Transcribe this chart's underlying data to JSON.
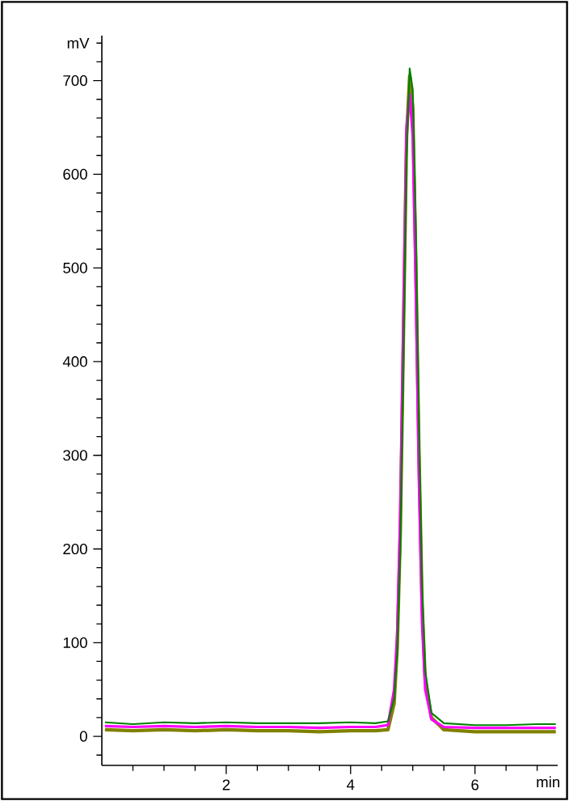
{
  "chart_data": {
    "type": "line",
    "xlabel": "min",
    "ylabel": "mV",
    "x": [
      0.05,
      0.5,
      1,
      1.5,
      2,
      2.5,
      3,
      3.5,
      4,
      4.4,
      4.6,
      4.7,
      4.75,
      4.8,
      4.85,
      4.9,
      4.95,
      5.0,
      5.05,
      5.1,
      5.15,
      5.2,
      5.3,
      5.5,
      6,
      6.5,
      7,
      7.3
    ],
    "series": [
      {
        "color": "#808000",
        "values": [
          7,
          6,
          7,
          6,
          7,
          6,
          6,
          5,
          6,
          6,
          7,
          35,
          95,
          220,
          430,
          640,
          705,
          670,
          500,
          300,
          140,
          60,
          20,
          7,
          5,
          5,
          5,
          5
        ]
      },
      {
        "color": "#ff00ff",
        "values": [
          11,
          10,
          11,
          10,
          11,
          10,
          10,
          9,
          10,
          10,
          12,
          50,
          110,
          240,
          450,
          650,
          685,
          640,
          470,
          270,
          120,
          50,
          18,
          10,
          9,
          9,
          9,
          9
        ]
      },
      {
        "color": "#008000",
        "values": [
          15,
          13,
          15,
          14,
          15,
          14,
          14,
          14,
          15,
          14,
          16,
          40,
          90,
          200,
          400,
          620,
          713,
          690,
          540,
          330,
          160,
          70,
          25,
          14,
          12,
          12,
          13,
          13
        ]
      }
    ],
    "xlim": [
      0,
      7.33
    ],
    "ylim": [
      -31,
      748
    ],
    "xticks": [
      {
        "value": 0.5,
        "label": null
      },
      {
        "value": 1,
        "label": null
      },
      {
        "value": 1.5,
        "label": null
      },
      2,
      {
        "value": 2.5,
        "label": null
      },
      {
        "value": 3,
        "label": null
      },
      {
        "value": 3.5,
        "label": null
      },
      4,
      {
        "value": 4.5,
        "label": null
      },
      {
        "value": 5,
        "label": null
      },
      {
        "value": 5.5,
        "label": null
      },
      6,
      {
        "value": 6.5,
        "label": null
      },
      {
        "value": 7,
        "label": null
      }
    ],
    "yticks": [
      {
        "value": -20,
        "label": null
      },
      0,
      {
        "value": 20,
        "label": null
      },
      {
        "value": 40,
        "label": null
      },
      {
        "value": 60,
        "label": null
      },
      {
        "value": 80,
        "label": null
      },
      100,
      {
        "value": 120,
        "label": null
      },
      {
        "value": 140,
        "label": null
      },
      {
        "value": 160,
        "label": null
      },
      {
        "value": 180,
        "label": null
      },
      200,
      {
        "value": 220,
        "label": null
      },
      {
        "value": 240,
        "label": null
      },
      {
        "value": 260,
        "label": null
      },
      {
        "value": 280,
        "label": null
      },
      300,
      {
        "value": 320,
        "label": null
      },
      {
        "value": 340,
        "label": null
      },
      {
        "value": 360,
        "label": null
      },
      {
        "value": 380,
        "label": null
      },
      400,
      {
        "value": 420,
        "label": null
      },
      {
        "value": 440,
        "label": null
      },
      {
        "value": 460,
        "label": null
      },
      {
        "value": 480,
        "label": null
      },
      500,
      {
        "value": 520,
        "label": null
      },
      {
        "value": 540,
        "label": null
      },
      {
        "value": 560,
        "label": null
      },
      {
        "value": 580,
        "label": null
      },
      600,
      {
        "value": 620,
        "label": null
      },
      {
        "value": 640,
        "label": null
      },
      {
        "value": 660,
        "label": null
      },
      {
        "value": 680,
        "label": null
      },
      700,
      {
        "value": 720,
        "label": null
      },
      {
        "value": 740,
        "label": null
      }
    ],
    "grid": false
  }
}
